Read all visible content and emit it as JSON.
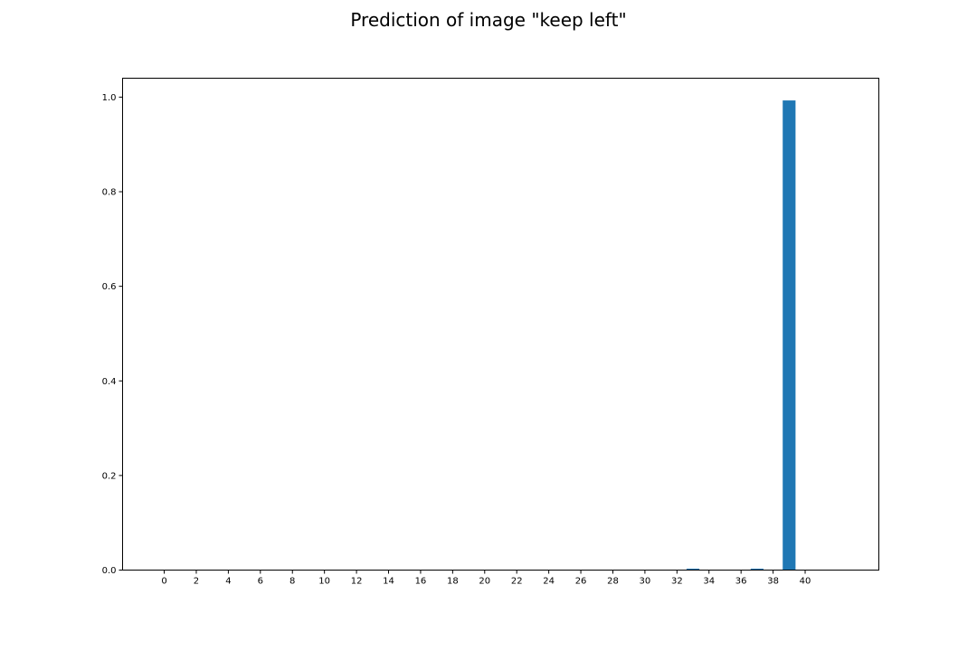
{
  "chart_data": {
    "type": "bar",
    "title": "Prediction of image \"keep left\"",
    "xlabel": "",
    "ylabel": "",
    "categories": [
      0,
      1,
      2,
      3,
      4,
      5,
      6,
      7,
      8,
      9,
      10,
      11,
      12,
      13,
      14,
      15,
      16,
      17,
      18,
      19,
      20,
      21,
      22,
      23,
      24,
      25,
      26,
      27,
      28,
      29,
      30,
      31,
      32,
      33,
      34,
      35,
      36,
      37,
      38,
      39,
      40,
      41,
      42
    ],
    "values": [
      0,
      0,
      0,
      0,
      0,
      0,
      0,
      0,
      0,
      0,
      0,
      0,
      0,
      0,
      0,
      0,
      0,
      0,
      0,
      0,
      0,
      0,
      0,
      0,
      0,
      0,
      0,
      0,
      0,
      0,
      0,
      0,
      0,
      0.003,
      0,
      0,
      0,
      0.003,
      0,
      0.993,
      0,
      0,
      0
    ],
    "xlim": [
      -2.6,
      44.6
    ],
    "ylim": [
      0,
      1.04
    ],
    "xticks": [
      "0",
      "2",
      "4",
      "6",
      "8",
      "10",
      "12",
      "14",
      "16",
      "18",
      "20",
      "22",
      "24",
      "26",
      "28",
      "30",
      "32",
      "34",
      "36",
      "38",
      "40"
    ],
    "yticks": [
      "0.0",
      "0.2",
      "0.4",
      "0.6",
      "0.8",
      "1.0"
    ],
    "bar_color": "#1f77b4",
    "grid": false,
    "legend": "none"
  }
}
